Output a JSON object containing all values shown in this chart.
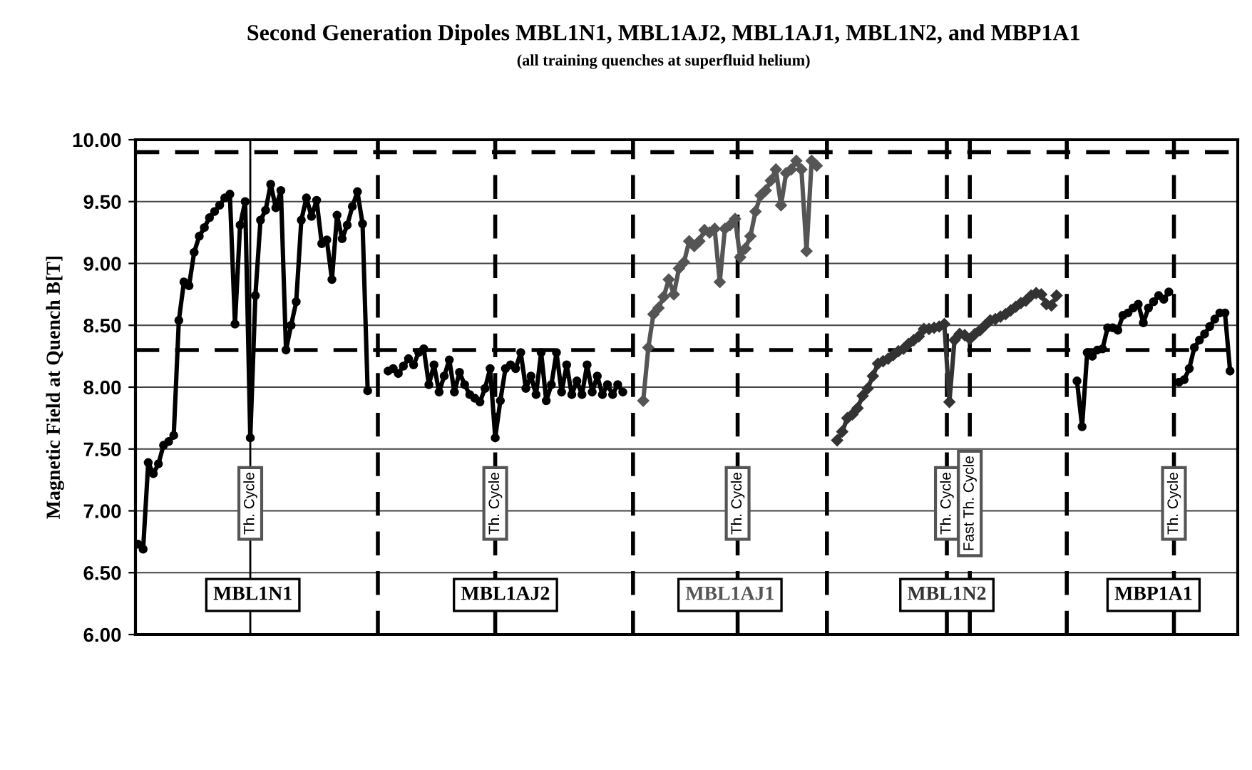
{
  "chart_data": {
    "type": "line",
    "title": "Second Generation Dipoles MBL1N1, MBL1AJ2, MBL1AJ1, MBL1N2, and MBP1A1",
    "subtitle": "(all training quenches at superfluid helium)",
    "ylabel": "Magnetic Field at Quench B[T]",
    "ylim": [
      6.0,
      10.0
    ],
    "yticks": [
      {
        "value": 6.0,
        "label": "6.00"
      },
      {
        "value": 6.5,
        "label": "6.50"
      },
      {
        "value": 7.0,
        "label": "7.00"
      },
      {
        "value": 7.5,
        "label": "7.50"
      },
      {
        "value": 8.0,
        "label": "8.00"
      },
      {
        "value": 8.5,
        "label": "8.50"
      },
      {
        "value": 9.0,
        "label": "9.00"
      },
      {
        "value": 9.5,
        "label": "9.50"
      },
      {
        "value": 10.0,
        "label": "10.00"
      }
    ],
    "grid": "y",
    "line_style": "solid",
    "categories": [
      null,
      null,
      null,
      null,
      null,
      null,
      null,
      null,
      null,
      null,
      null,
      null,
      null,
      null,
      null,
      null,
      null,
      null,
      null,
      null,
      null,
      null,
      null,
      null,
      null,
      null,
      null,
      null,
      null,
      null,
      null,
      null,
      null,
      null,
      null,
      null,
      null,
      null,
      null,
      null,
      null,
      null,
      null,
      null,
      null,
      null,
      null,
      null,
      null,
      null,
      null,
      null,
      null,
      null,
      null,
      null,
      null,
      null,
      null,
      null,
      null,
      null,
      null,
      null,
      null,
      null,
      null,
      null,
      null,
      null,
      null,
      null,
      null,
      null,
      null,
      null,
      null,
      null,
      null,
      null,
      null,
      null,
      null,
      null,
      null,
      null,
      null,
      null,
      null,
      null,
      null,
      null,
      null,
      null,
      null,
      null,
      null,
      null,
      null,
      null,
      null,
      null,
      null,
      null,
      null,
      null,
      null,
      null,
      null,
      null,
      null,
      null,
      null,
      null,
      null,
      null,
      null,
      null,
      null,
      null,
      null,
      null,
      null,
      null,
      null,
      null,
      null,
      null,
      null,
      null,
      null,
      null,
      null,
      null,
      null,
      null,
      null,
      null,
      null,
      null,
      null,
      null,
      null,
      null,
      null,
      null,
      null,
      null,
      null,
      null,
      null,
      null,
      null,
      null,
      null,
      null,
      null,
      null,
      null,
      null,
      null,
      null,
      null,
      null,
      null,
      null,
      null,
      null,
      null,
      null,
      null,
      null,
      null,
      null,
      null,
      null,
      null,
      null,
      null,
      null,
      null,
      null,
      null,
      null,
      null,
      null,
      null,
      null,
      null,
      null,
      null,
      null,
      null,
      null,
      null,
      null,
      null,
      null,
      null,
      null,
      null,
      null,
      null,
      null,
      null,
      null,
      null,
      null,
      null,
      null,
      null,
      null,
      null,
      null,
      null,
      null
    ],
    "series": [
      {
        "name": "MBL1N1",
        "color": "#000000",
        "marker": "circle",
        "values": [
          6.73,
          6.69,
          7.39,
          7.3,
          7.38,
          7.53,
          7.56,
          7.61,
          8.54,
          8.85,
          8.82,
          9.09,
          9.22,
          9.29,
          9.37,
          9.42,
          9.47,
          9.53,
          9.56,
          8.51,
          9.31,
          9.5,
          7.59,
          8.74,
          9.35,
          9.43,
          9.64,
          9.45,
          9.59,
          8.3,
          8.5,
          8.69,
          9.35,
          9.53,
          9.38,
          9.51,
          9.16,
          9.19,
          8.87,
          9.39,
          9.2,
          9.31,
          9.46,
          9.58,
          9.32,
          7.97,
          null,
          null,
          null,
          null,
          null,
          null,
          null,
          null,
          null,
          null,
          null,
          null,
          null,
          null,
          null,
          null,
          null,
          null,
          null,
          null,
          null,
          null,
          null,
          null,
          null,
          null,
          null,
          null,
          null,
          null,
          null,
          null,
          null,
          null,
          null,
          null,
          null,
          null,
          null,
          null,
          null,
          null,
          null,
          null,
          null,
          null,
          null,
          null,
          null,
          null,
          null,
          null,
          null,
          null,
          null,
          null,
          null,
          null,
          null,
          null,
          null,
          null,
          null,
          null,
          null,
          null,
          null,
          null,
          null,
          null,
          null,
          null,
          null,
          null,
          null,
          null,
          null,
          null,
          null,
          null,
          null,
          null,
          null,
          null,
          null,
          null,
          null,
          null,
          null,
          null,
          null,
          null,
          null,
          null,
          null,
          null,
          null,
          null,
          null,
          null,
          null,
          null,
          null,
          null,
          null,
          null,
          null,
          null,
          null,
          null,
          null,
          null,
          null,
          null,
          null,
          null,
          null,
          null,
          null,
          null,
          null,
          null,
          null,
          null,
          null,
          null,
          null,
          null,
          null,
          null,
          null,
          null,
          null,
          null,
          null,
          null,
          null,
          null,
          null,
          null,
          null,
          null,
          null,
          null,
          null,
          null,
          null,
          null,
          null,
          null,
          null,
          null,
          null,
          null,
          null,
          null,
          null,
          null,
          null,
          null,
          null,
          null,
          null,
          null,
          null,
          null,
          null,
          null,
          null,
          null
        ]
      },
      {
        "name": "MBL1AJ2",
        "color": "#000000",
        "marker": "circle",
        "values": [
          null,
          null,
          null,
          null,
          null,
          null,
          null,
          null,
          null,
          null,
          null,
          null,
          null,
          null,
          null,
          null,
          null,
          null,
          null,
          null,
          null,
          null,
          null,
          null,
          null,
          null,
          null,
          null,
          null,
          null,
          null,
          null,
          null,
          null,
          null,
          null,
          null,
          null,
          null,
          null,
          null,
          null,
          null,
          null,
          null,
          null,
          null,
          null,
          null,
          8.13,
          8.15,
          8.11,
          8.17,
          8.23,
          8.18,
          8.28,
          8.31,
          8.02,
          8.18,
          7.96,
          8.09,
          8.22,
          7.96,
          8.12,
          8.02,
          7.94,
          7.91,
          7.88,
          7.99,
          8.15,
          7.59,
          7.89,
          8.15,
          8.18,
          8.15,
          8.28,
          7.99,
          8.09,
          7.94,
          8.28,
          7.89,
          8.02,
          8.28,
          7.96,
          8.18,
          7.94,
          8.05,
          7.94,
          8.18,
          7.96,
          8.09,
          7.94,
          8.02,
          7.94,
          8.02,
          7.96,
          null,
          null,
          null,
          null,
          null,
          null,
          null,
          null,
          null,
          null,
          null,
          null,
          null,
          null,
          null,
          null,
          null,
          null,
          null,
          null,
          null,
          null,
          null,
          null,
          null,
          null,
          null,
          null,
          null,
          null,
          null,
          null,
          null,
          null,
          null,
          null,
          null,
          null,
          null,
          null,
          null,
          null,
          null,
          null,
          null,
          null,
          null,
          null,
          null,
          null,
          null,
          null,
          null,
          null,
          null,
          null,
          null,
          null,
          null,
          null,
          null,
          null,
          null,
          null,
          null,
          null,
          null,
          null,
          null,
          null,
          null,
          null,
          null,
          null,
          null,
          null,
          null,
          null,
          null,
          null,
          null,
          null,
          null,
          null,
          null,
          null,
          null,
          null,
          null,
          null,
          null,
          null,
          null,
          null,
          null,
          null,
          null,
          null,
          null,
          null,
          null,
          null,
          null,
          null,
          null,
          null,
          null,
          null,
          null,
          null,
          null,
          null,
          null,
          null,
          null,
          null,
          null,
          null,
          null,
          null
        ]
      },
      {
        "name": "MBL1AJ1",
        "color": "#555555",
        "marker": "diamond",
        "values": [
          null,
          null,
          null,
          null,
          null,
          null,
          null,
          null,
          null,
          null,
          null,
          null,
          null,
          null,
          null,
          null,
          null,
          null,
          null,
          null,
          null,
          null,
          null,
          null,
          null,
          null,
          null,
          null,
          null,
          null,
          null,
          null,
          null,
          null,
          null,
          null,
          null,
          null,
          null,
          null,
          null,
          null,
          null,
          null,
          null,
          null,
          null,
          null,
          null,
          null,
          null,
          null,
          null,
          null,
          null,
          null,
          null,
          null,
          null,
          null,
          null,
          null,
          null,
          null,
          null,
          null,
          null,
          null,
          null,
          null,
          null,
          null,
          null,
          null,
          null,
          null,
          null,
          null,
          null,
          null,
          null,
          null,
          null,
          null,
          null,
          null,
          null,
          null,
          null,
          null,
          null,
          null,
          null,
          null,
          null,
          null,
          null,
          null,
          null,
          7.89,
          8.32,
          8.59,
          8.64,
          8.73,
          8.87,
          8.75,
          8.96,
          9.01,
          9.18,
          9.14,
          9.18,
          9.27,
          9.25,
          9.28,
          8.85,
          9.28,
          9.31,
          9.36,
          9.05,
          9.12,
          9.22,
          9.42,
          9.55,
          9.59,
          9.67,
          9.76,
          9.47,
          9.73,
          9.76,
          9.83,
          9.76,
          9.1,
          9.83,
          9.79,
          null,
          null,
          null,
          null,
          null,
          null,
          null,
          null,
          null,
          null,
          null,
          null,
          null,
          null,
          null,
          null,
          null,
          null,
          null,
          null,
          null,
          null,
          null,
          null,
          null,
          null,
          null,
          null,
          null,
          null,
          null,
          null,
          null,
          null,
          null,
          null,
          null,
          null,
          null,
          null,
          null,
          null,
          null,
          null,
          null,
          null,
          null,
          null,
          null,
          null,
          null,
          null,
          null,
          null,
          null,
          null,
          null,
          null,
          null,
          null,
          null,
          null,
          null,
          null,
          null,
          null,
          null,
          null,
          null,
          null,
          null,
          null,
          null,
          null,
          null,
          null,
          null,
          null,
          null,
          null,
          null,
          null
        ]
      },
      {
        "name": "MBL1N2",
        "color": "#333333",
        "marker": "diamond",
        "values": [
          null,
          null,
          null,
          null,
          null,
          null,
          null,
          null,
          null,
          null,
          null,
          null,
          null,
          null,
          null,
          null,
          null,
          null,
          null,
          null,
          null,
          null,
          null,
          null,
          null,
          null,
          null,
          null,
          null,
          null,
          null,
          null,
          null,
          null,
          null,
          null,
          null,
          null,
          null,
          null,
          null,
          null,
          null,
          null,
          null,
          null,
          null,
          null,
          null,
          null,
          null,
          null,
          null,
          null,
          null,
          null,
          null,
          null,
          null,
          null,
          null,
          null,
          null,
          null,
          null,
          null,
          null,
          null,
          null,
          null,
          null,
          null,
          null,
          null,
          null,
          null,
          null,
          null,
          null,
          null,
          null,
          null,
          null,
          null,
          null,
          null,
          null,
          null,
          null,
          null,
          null,
          null,
          null,
          null,
          null,
          null,
          null,
          null,
          null,
          null,
          null,
          null,
          null,
          null,
          null,
          null,
          null,
          null,
          null,
          null,
          null,
          null,
          null,
          null,
          null,
          null,
          null,
          null,
          null,
          null,
          null,
          null,
          null,
          null,
          null,
          null,
          null,
          null,
          null,
          null,
          null,
          null,
          null,
          null,
          null,
          null,
          null,
          7.57,
          7.64,
          7.75,
          7.78,
          7.83,
          7.93,
          7.99,
          8.09,
          8.19,
          8.21,
          8.23,
          8.26,
          8.29,
          8.31,
          8.35,
          8.38,
          8.41,
          8.47,
          8.47,
          8.48,
          8.49,
          8.51,
          7.88,
          8.38,
          8.43,
          8.42,
          8.39,
          8.43,
          8.46,
          8.5,
          8.54,
          8.55,
          8.57,
          8.59,
          8.62,
          8.65,
          8.68,
          8.7,
          8.74,
          8.76,
          8.75,
          8.67,
          8.66,
          8.74,
          null,
          null,
          null,
          null,
          null,
          null,
          null,
          null,
          null,
          null,
          null,
          null,
          null,
          null,
          null,
          null,
          null,
          null,
          null,
          null,
          null,
          null,
          null,
          null,
          null,
          null,
          null,
          null,
          null,
          null,
          null,
          null,
          null,
          null,
          null
        ]
      },
      {
        "name": "MBP1A1",
        "color": "#000000",
        "marker": "circle",
        "values": [
          null,
          null,
          null,
          null,
          null,
          null,
          null,
          null,
          null,
          null,
          null,
          null,
          null,
          null,
          null,
          null,
          null,
          null,
          null,
          null,
          null,
          null,
          null,
          null,
          null,
          null,
          null,
          null,
          null,
          null,
          null,
          null,
          null,
          null,
          null,
          null,
          null,
          null,
          null,
          null,
          null,
          null,
          null,
          null,
          null,
          null,
          null,
          null,
          null,
          null,
          null,
          null,
          null,
          null,
          null,
          null,
          null,
          null,
          null,
          null,
          null,
          null,
          null,
          null,
          null,
          null,
          null,
          null,
          null,
          null,
          null,
          null,
          null,
          null,
          null,
          null,
          null,
          null,
          null,
          null,
          null,
          null,
          null,
          null,
          null,
          null,
          null,
          null,
          null,
          null,
          null,
          null,
          null,
          null,
          null,
          null,
          null,
          null,
          null,
          null,
          null,
          null,
          null,
          null,
          null,
          null,
          null,
          null,
          null,
          null,
          null,
          null,
          null,
          null,
          null,
          null,
          null,
          null,
          null,
          null,
          null,
          null,
          null,
          null,
          null,
          null,
          null,
          null,
          null,
          null,
          null,
          null,
          null,
          null,
          null,
          null,
          null,
          null,
          null,
          null,
          null,
          null,
          null,
          null,
          null,
          null,
          null,
          null,
          null,
          null,
          null,
          null,
          null,
          null,
          null,
          null,
          null,
          null,
          null,
          null,
          null,
          null,
          null,
          null,
          null,
          null,
          null,
          null,
          null,
          null,
          null,
          null,
          null,
          null,
          null,
          null,
          null,
          null,
          null,
          null,
          null,
          null,
          null,
          null,
          8.05,
          7.68,
          8.28,
          8.25,
          8.3,
          8.31,
          8.48,
          8.48,
          8.46,
          8.58,
          8.6,
          8.64,
          8.67,
          8.52,
          8.64,
          8.69,
          8.74,
          8.71,
          8.77,
          null,
          8.04,
          8.06,
          8.15,
          8.32,
          8.38,
          8.43,
          8.49,
          8.55,
          8.6,
          8.6,
          8.13,
          null
        ]
      }
    ],
    "ref_lines": [
      {
        "axis": "y",
        "value": 9.9,
        "line_style": "dashed",
        "color": "#000000"
      },
      {
        "axis": "y",
        "value": 8.3,
        "line_style": "dashed",
        "color": "#000000"
      }
    ],
    "annotations": [
      "Th. Cycle",
      "Th. Cycle",
      "Th. Cycle",
      "Th. Cycle",
      "Fast Th. Cycle",
      "Th. Cycle"
    ]
  }
}
